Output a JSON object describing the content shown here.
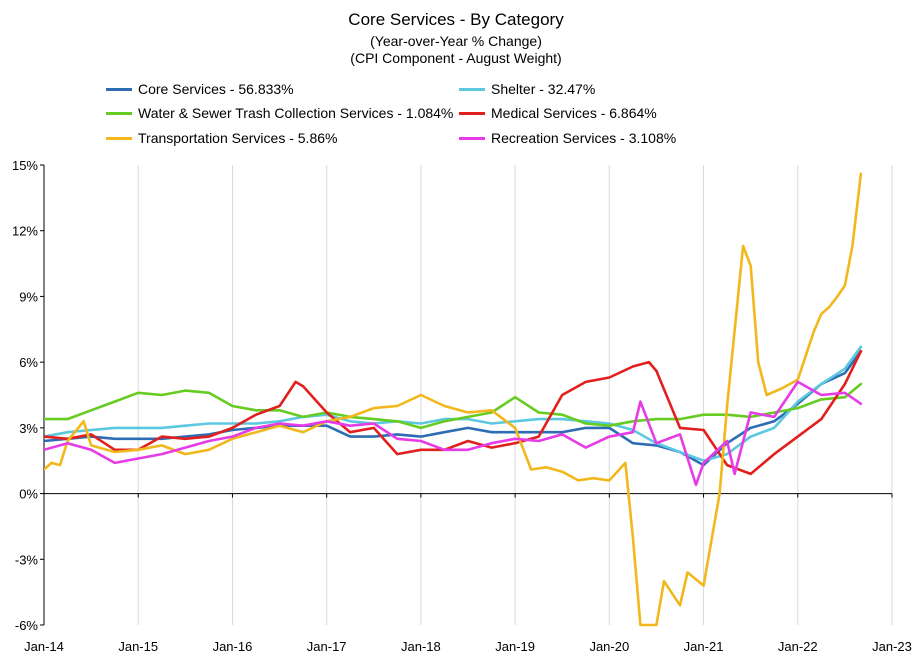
{
  "chart_data": {
    "type": "line",
    "title": "Core Services - By Category",
    "subtitle_1": "(Year-over-Year % Change)",
    "subtitle_2": "(CPI Component - August Weight)",
    "x_tick_labels": [
      "Jan-14",
      "Jan-15",
      "Jan-16",
      "Jan-17",
      "Jan-18",
      "Jan-19",
      "Jan-20",
      "Jan-21",
      "Jan-22",
      "Jan-23"
    ],
    "y_tick_labels": [
      "15%",
      "12%",
      "9%",
      "6%",
      "3%",
      "0%",
      "-3%",
      "-6%"
    ],
    "y_tick_values": [
      15,
      12,
      9,
      6,
      3,
      0,
      -3,
      -6
    ],
    "xlim": [
      2014.0,
      2023.0
    ],
    "ylim": [
      -6,
      15
    ],
    "grid": "vertical",
    "legend_position": "top",
    "series": [
      {
        "name": "Core Services - 56.833%",
        "color": "#2E6DB4",
        "points": [
          [
            2014.0,
            2.4
          ],
          [
            2014.25,
            2.5
          ],
          [
            2014.5,
            2.6
          ],
          [
            2014.75,
            2.5
          ],
          [
            2015.0,
            2.5
          ],
          [
            2015.25,
            2.5
          ],
          [
            2015.5,
            2.6
          ],
          [
            2015.75,
            2.7
          ],
          [
            2016.0,
            2.9
          ],
          [
            2016.25,
            3.0
          ],
          [
            2016.5,
            3.1
          ],
          [
            2016.75,
            3.1
          ],
          [
            2017.0,
            3.1
          ],
          [
            2017.25,
            2.6
          ],
          [
            2017.5,
            2.6
          ],
          [
            2017.75,
            2.7
          ],
          [
            2018.0,
            2.6
          ],
          [
            2018.25,
            2.8
          ],
          [
            2018.5,
            3.0
          ],
          [
            2018.75,
            2.8
          ],
          [
            2019.0,
            2.8
          ],
          [
            2019.25,
            2.8
          ],
          [
            2019.5,
            2.8
          ],
          [
            2019.75,
            3.0
          ],
          [
            2020.0,
            3.0
          ],
          [
            2020.25,
            2.3
          ],
          [
            2020.5,
            2.2
          ],
          [
            2020.75,
            1.9
          ],
          [
            2021.0,
            1.3
          ],
          [
            2021.25,
            2.3
          ],
          [
            2021.5,
            3.0
          ],
          [
            2021.75,
            3.3
          ],
          [
            2022.0,
            4.1
          ],
          [
            2022.25,
            5.0
          ],
          [
            2022.5,
            5.5
          ],
          [
            2022.67,
            6.5
          ]
        ]
      },
      {
        "name": "Shelter - 32.47%",
        "color": "#5BC8E0",
        "points": [
          [
            2014.0,
            2.6
          ],
          [
            2014.25,
            2.8
          ],
          [
            2014.5,
            2.9
          ],
          [
            2014.75,
            3.0
          ],
          [
            2015.0,
            3.0
          ],
          [
            2015.25,
            3.0
          ],
          [
            2015.5,
            3.1
          ],
          [
            2015.75,
            3.2
          ],
          [
            2016.0,
            3.2
          ],
          [
            2016.25,
            3.2
          ],
          [
            2016.5,
            3.3
          ],
          [
            2016.75,
            3.5
          ],
          [
            2017.0,
            3.6
          ],
          [
            2017.25,
            3.3
          ],
          [
            2017.5,
            3.2
          ],
          [
            2017.75,
            3.3
          ],
          [
            2018.0,
            3.2
          ],
          [
            2018.25,
            3.4
          ],
          [
            2018.5,
            3.4
          ],
          [
            2018.75,
            3.2
          ],
          [
            2019.0,
            3.3
          ],
          [
            2019.25,
            3.4
          ],
          [
            2019.5,
            3.4
          ],
          [
            2019.75,
            3.3
          ],
          [
            2020.0,
            3.2
          ],
          [
            2020.25,
            2.9
          ],
          [
            2020.5,
            2.3
          ],
          [
            2020.75,
            1.9
          ],
          [
            2021.0,
            1.5
          ],
          [
            2021.25,
            1.8
          ],
          [
            2021.5,
            2.6
          ],
          [
            2021.75,
            3.0
          ],
          [
            2022.0,
            4.2
          ],
          [
            2022.25,
            5.0
          ],
          [
            2022.5,
            5.7
          ],
          [
            2022.67,
            6.7
          ]
        ]
      },
      {
        "name": "Water & Sewer Trash Collection Services - 1.084%",
        "color": "#66CC22",
        "points": [
          [
            2014.0,
            3.4
          ],
          [
            2014.25,
            3.4
          ],
          [
            2014.5,
            3.8
          ],
          [
            2014.75,
            4.2
          ],
          [
            2015.0,
            4.6
          ],
          [
            2015.25,
            4.5
          ],
          [
            2015.5,
            4.7
          ],
          [
            2015.75,
            4.6
          ],
          [
            2016.0,
            4.0
          ],
          [
            2016.25,
            3.8
          ],
          [
            2016.5,
            3.8
          ],
          [
            2016.75,
            3.5
          ],
          [
            2017.0,
            3.7
          ],
          [
            2017.25,
            3.5
          ],
          [
            2017.5,
            3.4
          ],
          [
            2017.75,
            3.3
          ],
          [
            2018.0,
            3.0
          ],
          [
            2018.25,
            3.3
          ],
          [
            2018.5,
            3.5
          ],
          [
            2018.75,
            3.7
          ],
          [
            2019.0,
            4.4
          ],
          [
            2019.25,
            3.7
          ],
          [
            2019.5,
            3.6
          ],
          [
            2019.75,
            3.2
          ],
          [
            2020.0,
            3.1
          ],
          [
            2020.25,
            3.3
          ],
          [
            2020.5,
            3.4
          ],
          [
            2020.75,
            3.4
          ],
          [
            2021.0,
            3.6
          ],
          [
            2021.25,
            3.6
          ],
          [
            2021.5,
            3.5
          ],
          [
            2021.75,
            3.7
          ],
          [
            2022.0,
            3.9
          ],
          [
            2022.25,
            4.3
          ],
          [
            2022.5,
            4.4
          ],
          [
            2022.67,
            5.0
          ]
        ]
      },
      {
        "name": "Medical Services - 6.864%",
        "color": "#E1201E",
        "points": [
          [
            2014.0,
            2.6
          ],
          [
            2014.25,
            2.5
          ],
          [
            2014.5,
            2.7
          ],
          [
            2014.75,
            2.0
          ],
          [
            2015.0,
            2.0
          ],
          [
            2015.25,
            2.6
          ],
          [
            2015.5,
            2.5
          ],
          [
            2015.75,
            2.6
          ],
          [
            2016.0,
            3.0
          ],
          [
            2016.25,
            3.6
          ],
          [
            2016.5,
            4.0
          ],
          [
            2016.67,
            5.1
          ],
          [
            2016.75,
            4.9
          ],
          [
            2017.0,
            3.7
          ],
          [
            2017.25,
            2.8
          ],
          [
            2017.5,
            3.0
          ],
          [
            2017.75,
            1.8
          ],
          [
            2018.0,
            2.0
          ],
          [
            2018.25,
            2.0
          ],
          [
            2018.5,
            2.4
          ],
          [
            2018.75,
            2.1
          ],
          [
            2019.0,
            2.3
          ],
          [
            2019.25,
            2.6
          ],
          [
            2019.5,
            4.5
          ],
          [
            2019.75,
            5.1
          ],
          [
            2020.0,
            5.3
          ],
          [
            2020.25,
            5.8
          ],
          [
            2020.42,
            6.0
          ],
          [
            2020.5,
            5.6
          ],
          [
            2020.75,
            3.0
          ],
          [
            2021.0,
            2.9
          ],
          [
            2021.25,
            1.3
          ],
          [
            2021.5,
            0.9
          ],
          [
            2021.75,
            1.8
          ],
          [
            2022.0,
            2.6
          ],
          [
            2022.25,
            3.4
          ],
          [
            2022.5,
            5.0
          ],
          [
            2022.67,
            6.5
          ]
        ]
      },
      {
        "name": "Transportation Services - 5.86%",
        "color": "#F2B81B",
        "points": [
          [
            2014.0,
            1.1
          ],
          [
            2014.08,
            1.4
          ],
          [
            2014.17,
            1.3
          ],
          [
            2014.25,
            2.4
          ],
          [
            2014.42,
            3.3
          ],
          [
            2014.5,
            2.2
          ],
          [
            2014.75,
            1.9
          ],
          [
            2015.0,
            2.0
          ],
          [
            2015.25,
            2.2
          ],
          [
            2015.5,
            1.8
          ],
          [
            2015.75,
            2.0
          ],
          [
            2016.0,
            2.5
          ],
          [
            2016.25,
            2.8
          ],
          [
            2016.5,
            3.1
          ],
          [
            2016.75,
            2.8
          ],
          [
            2017.0,
            3.3
          ],
          [
            2017.25,
            3.5
          ],
          [
            2017.5,
            3.9
          ],
          [
            2017.75,
            4.0
          ],
          [
            2018.0,
            4.5
          ],
          [
            2018.25,
            4.0
          ],
          [
            2018.5,
            3.7
          ],
          [
            2018.75,
            3.8
          ],
          [
            2019.0,
            3.0
          ],
          [
            2019.17,
            1.1
          ],
          [
            2019.33,
            1.2
          ],
          [
            2019.5,
            1.0
          ],
          [
            2019.67,
            0.6
          ],
          [
            2019.83,
            0.7
          ],
          [
            2020.0,
            0.6
          ],
          [
            2020.17,
            1.4
          ],
          [
            2020.25,
            -2.0
          ],
          [
            2020.33,
            -6.0
          ],
          [
            2020.5,
            -6.0
          ],
          [
            2020.58,
            -4.0
          ],
          [
            2020.75,
            -5.1
          ],
          [
            2020.83,
            -3.6
          ],
          [
            2021.0,
            -4.2
          ],
          [
            2021.17,
            0.0
          ],
          [
            2021.25,
            4.0
          ],
          [
            2021.42,
            11.3
          ],
          [
            2021.5,
            10.4
          ],
          [
            2021.58,
            6.0
          ],
          [
            2021.67,
            4.5
          ],
          [
            2021.83,
            4.8
          ],
          [
            2022.0,
            5.2
          ],
          [
            2022.17,
            7.4
          ],
          [
            2022.25,
            8.2
          ],
          [
            2022.33,
            8.5
          ],
          [
            2022.42,
            9.0
          ],
          [
            2022.5,
            9.5
          ],
          [
            2022.58,
            11.3
          ],
          [
            2022.67,
            14.6
          ]
        ]
      },
      {
        "name": "Recreation Services - 3.108%",
        "color": "#E63BE6",
        "points": [
          [
            2014.0,
            2.0
          ],
          [
            2014.25,
            2.3
          ],
          [
            2014.5,
            2.0
          ],
          [
            2014.75,
            1.4
          ],
          [
            2015.0,
            1.6
          ],
          [
            2015.25,
            1.8
          ],
          [
            2015.5,
            2.1
          ],
          [
            2015.75,
            2.4
          ],
          [
            2016.0,
            2.6
          ],
          [
            2016.25,
            3.0
          ],
          [
            2016.5,
            3.2
          ],
          [
            2016.75,
            3.1
          ],
          [
            2017.0,
            3.3
          ],
          [
            2017.25,
            3.1
          ],
          [
            2017.5,
            3.2
          ],
          [
            2017.75,
            2.5
          ],
          [
            2018.0,
            2.4
          ],
          [
            2018.25,
            2.0
          ],
          [
            2018.5,
            2.0
          ],
          [
            2018.75,
            2.3
          ],
          [
            2019.0,
            2.5
          ],
          [
            2019.25,
            2.4
          ],
          [
            2019.5,
            2.7
          ],
          [
            2019.75,
            2.1
          ],
          [
            2020.0,
            2.6
          ],
          [
            2020.25,
            2.8
          ],
          [
            2020.33,
            4.2
          ],
          [
            2020.5,
            2.3
          ],
          [
            2020.75,
            2.7
          ],
          [
            2020.92,
            0.4
          ],
          [
            2021.0,
            1.4
          ],
          [
            2021.25,
            2.4
          ],
          [
            2021.33,
            0.9
          ],
          [
            2021.5,
            3.7
          ],
          [
            2021.75,
            3.5
          ],
          [
            2022.0,
            5.1
          ],
          [
            2022.25,
            4.5
          ],
          [
            2022.5,
            4.6
          ],
          [
            2022.67,
            4.1
          ]
        ]
      }
    ]
  }
}
